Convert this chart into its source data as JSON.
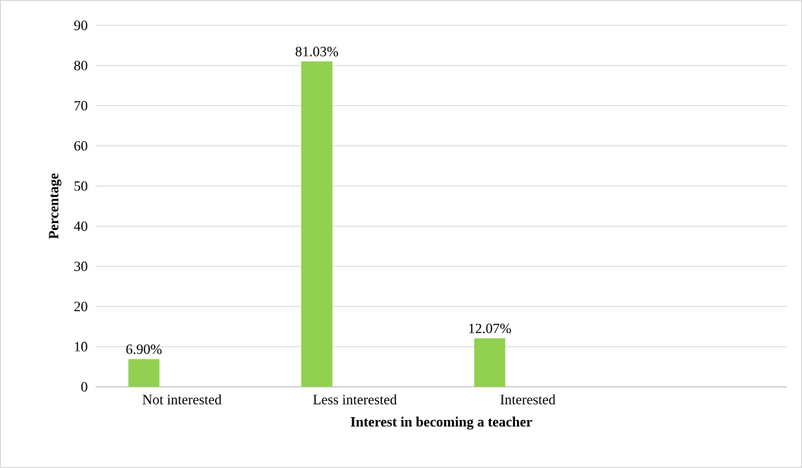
{
  "chart_data": {
    "type": "bar",
    "categories": [
      "Not interested",
      "Less interested",
      "Interested",
      null
    ],
    "values": [
      6.9,
      81.03,
      12.07,
      null
    ],
    "value_labels": [
      "6.90%",
      "81.03%",
      "12.07%",
      null
    ],
    "color": "#92d050",
    "xlabel": "Interest in becoming a teacher",
    "ylabel": "Percentage",
    "ylim": [
      0,
      90
    ],
    "yticks": [
      0,
      10,
      20,
      30,
      40,
      50,
      60,
      70,
      80,
      90
    ],
    "grid": "y"
  }
}
